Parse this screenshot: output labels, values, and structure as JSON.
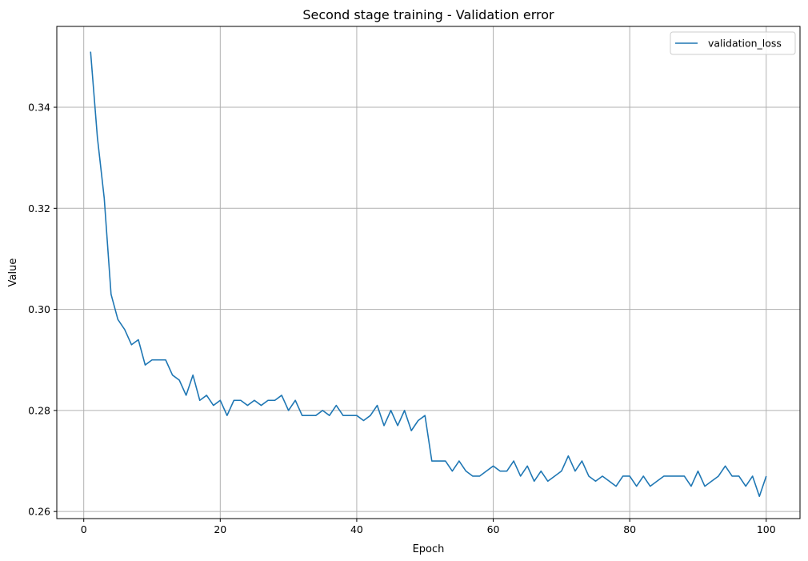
{
  "chart_data": {
    "type": "line",
    "title": "Second stage training - Validation error",
    "xlabel": "Epoch",
    "ylabel": "Value",
    "xlim": [
      -3.95,
      104.95
    ],
    "ylim": [
      0.2586,
      0.356
    ],
    "x_ticks": [
      0,
      20,
      40,
      60,
      80,
      100
    ],
    "y_ticks": [
      0.26,
      0.28,
      0.3,
      0.32,
      0.34
    ],
    "x_tick_labels": [
      "0",
      "20",
      "40",
      "60",
      "80",
      "100"
    ],
    "y_tick_labels": [
      "0.26",
      "0.28",
      "0.30",
      "0.32",
      "0.34"
    ],
    "grid": true,
    "legend_position": "top-right",
    "line_color": "#1f77b4",
    "series": [
      {
        "name": "validation_loss",
        "x": [
          1,
          2,
          3,
          4,
          5,
          6,
          7,
          8,
          9,
          10,
          11,
          12,
          13,
          14,
          15,
          16,
          17,
          18,
          19,
          20,
          21,
          22,
          23,
          24,
          25,
          26,
          27,
          28,
          29,
          30,
          31,
          32,
          33,
          34,
          35,
          36,
          37,
          38,
          39,
          40,
          41,
          42,
          43,
          44,
          45,
          46,
          47,
          48,
          49,
          50,
          51,
          52,
          53,
          54,
          55,
          56,
          57,
          58,
          59,
          60,
          61,
          62,
          63,
          64,
          65,
          66,
          67,
          68,
          69,
          70,
          71,
          72,
          73,
          74,
          75,
          76,
          77,
          78,
          79,
          80,
          81,
          82,
          83,
          84,
          85,
          86,
          87,
          88,
          89,
          90,
          91,
          92,
          93,
          94,
          95,
          96,
          97,
          98,
          99,
          100
        ],
        "values": [
          0.351,
          0.334,
          0.322,
          0.303,
          0.298,
          0.296,
          0.293,
          0.294,
          0.289,
          0.29,
          0.29,
          0.29,
          0.287,
          0.286,
          0.283,
          0.287,
          0.282,
          0.283,
          0.281,
          0.282,
          0.279,
          0.282,
          0.282,
          0.281,
          0.282,
          0.281,
          0.282,
          0.282,
          0.283,
          0.28,
          0.282,
          0.279,
          0.279,
          0.279,
          0.28,
          0.279,
          0.281,
          0.279,
          0.279,
          0.279,
          0.278,
          0.279,
          0.281,
          0.277,
          0.28,
          0.277,
          0.28,
          0.276,
          0.278,
          0.279,
          0.27,
          0.27,
          0.27,
          0.268,
          0.27,
          0.268,
          0.267,
          0.267,
          0.268,
          0.269,
          0.268,
          0.268,
          0.27,
          0.267,
          0.269,
          0.266,
          0.268,
          0.266,
          0.267,
          0.268,
          0.271,
          0.268,
          0.27,
          0.267,
          0.266,
          0.267,
          0.266,
          0.265,
          0.267,
          0.267,
          0.265,
          0.267,
          0.265,
          0.266,
          0.267,
          0.267,
          0.267,
          0.267,
          0.265,
          0.268,
          0.265,
          0.266,
          0.267,
          0.269,
          0.267,
          0.267,
          0.265,
          0.267,
          0.263,
          0.267
        ]
      }
    ]
  }
}
